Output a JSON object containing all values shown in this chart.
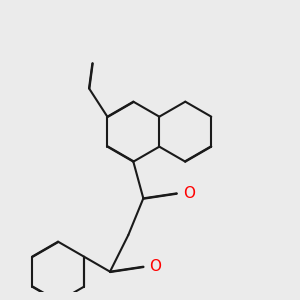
{
  "background_color": "#ebebeb",
  "line_color": "#1a1a1a",
  "o_color": "#ff0000",
  "line_width": 1.5,
  "o_fontsize": 11,
  "figsize": [
    3.0,
    3.0
  ],
  "dpi": 100
}
